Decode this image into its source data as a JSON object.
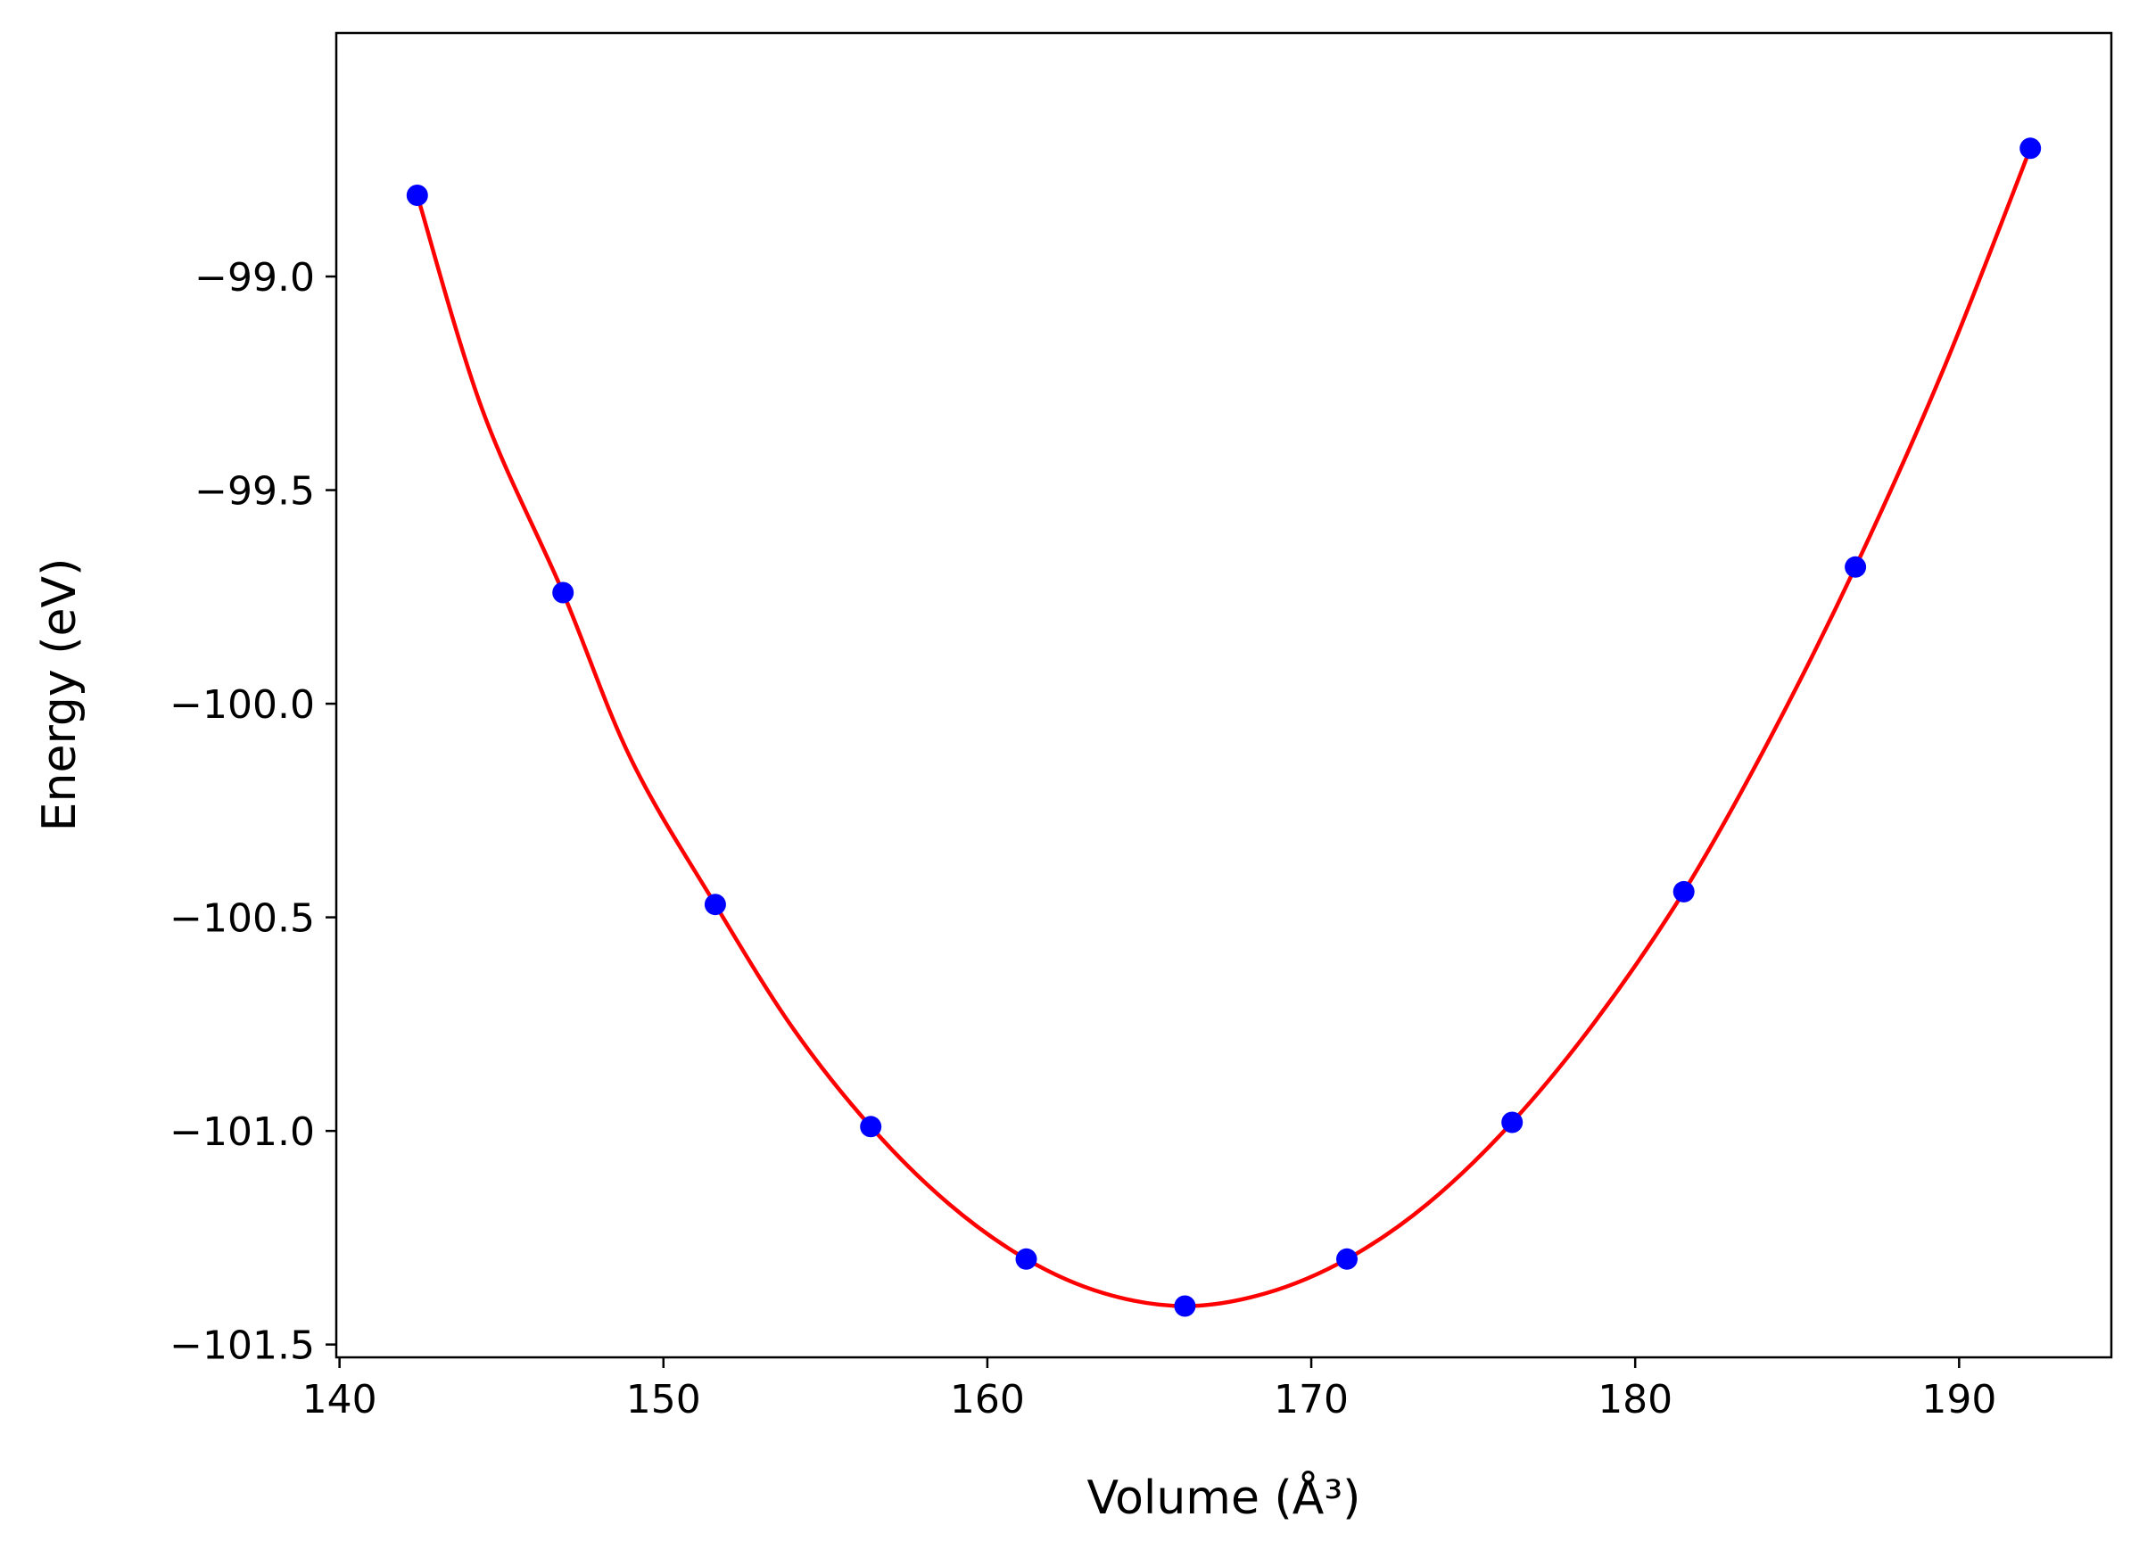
{
  "chart_data": {
    "type": "scatter",
    "title": "",
    "xlabel": "Volume (Å³)",
    "ylabel": "Energy (eV)",
    "xlim": [
      139.9,
      194.7
    ],
    "ylim": [
      -101.53,
      -98.43
    ],
    "x_ticks": [
      140,
      150,
      160,
      170,
      180,
      190
    ],
    "x_tick_labels": [
      "140",
      "150",
      "160",
      "170",
      "180",
      "190"
    ],
    "y_ticks": [
      -99.0,
      -99.5,
      -100.0,
      -100.5,
      -101.0,
      -101.5
    ],
    "y_tick_labels": [
      "−99.0",
      "−99.5",
      "−100.0",
      "−100.5",
      "−101.0",
      "−101.5"
    ],
    "grid": false,
    "legend": "none",
    "series": [
      {
        "kind": "points",
        "color": "#0000ff",
        "x": [
          142.4,
          146.9,
          151.6,
          156.4,
          161.2,
          166.1,
          171.1,
          176.2,
          181.5,
          186.8,
          192.2
        ],
        "y": [
          -98.81,
          -99.74,
          -100.47,
          -100.99,
          -101.3,
          -101.41,
          -101.3,
          -100.98,
          -100.44,
          -99.68,
          -98.7
        ]
      },
      {
        "kind": "fit-curve",
        "color": "#ff0000",
        "x": [
          142.4,
          144.4,
          146.9,
          149.0,
          151.6,
          154.0,
          156.4,
          158.8,
          161.2,
          163.6,
          166.1,
          168.6,
          171.1,
          173.6,
          176.2,
          178.8,
          181.5,
          184.1,
          186.8,
          189.5,
          192.2
        ],
        "y": [
          -98.81,
          -99.31,
          -99.74,
          -100.13,
          -100.47,
          -100.76,
          -100.99,
          -101.17,
          -101.3,
          -101.38,
          -101.41,
          -101.38,
          -101.3,
          -101.17,
          -100.98,
          -100.74,
          -100.44,
          -100.09,
          -99.68,
          -99.22,
          -98.7
        ]
      }
    ]
  }
}
